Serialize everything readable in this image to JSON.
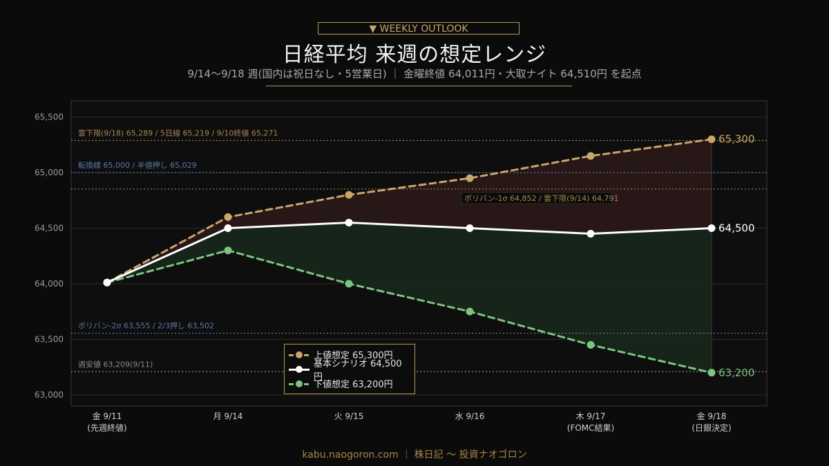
{
  "header": {
    "badge": "▼ WEEKLY OUTLOOK",
    "title": "日経平均 来週の想定レンジ",
    "subtitle": "9/14〜9/18 週(国内は祝日なし・5営業日) ｜ 金曜終値 64,011円・大取ナイト 64,510円 を起点"
  },
  "footer": {
    "text": "kabu.naogoron.com ｜ 株日記 〜 投資ナオゴロン"
  },
  "colors": {
    "upper": "#c9a66b",
    "base": "#ffffff",
    "lower": "#7bc67e",
    "upper_band": "#2a1818",
    "lower_band": "#17261b",
    "blue_ref": "#5a78a8",
    "gold_ref": "#a8854a",
    "gray_ref": "#8a8a8a"
  },
  "chart_data": {
    "type": "line",
    "categories": [
      "金 9/11\n(先週終値)",
      "月 9/14",
      "火 9/15",
      "水 9/16",
      "木 9/17\n(FOMC結果)",
      "金 9/18\n(日銀決定)"
    ],
    "ylim": [
      63000,
      65700
    ],
    "yticks": [
      63000,
      63500,
      64000,
      64500,
      65000,
      65500
    ],
    "ytick_labels": [
      "63,000",
      "63,500",
      "64,000",
      "64,500",
      "65,000",
      "65,500"
    ],
    "grid": true,
    "series": [
      {
        "name": "上値想定 65,300円",
        "key": "upper",
        "values": [
          64011,
          64600,
          64800,
          64950,
          65150,
          65300
        ],
        "dashed": true,
        "end_label": "65,300"
      },
      {
        "name": "基本シナリオ 64,500円",
        "key": "base",
        "values": [
          64011,
          64500,
          64550,
          64500,
          64450,
          64500
        ],
        "dashed": false,
        "end_label": "64,500"
      },
      {
        "name": "下値想定 63,200円",
        "key": "lower",
        "values": [
          64011,
          64300,
          64000,
          63750,
          63450,
          63200
        ],
        "dashed": true,
        "end_label": "63,200"
      }
    ],
    "reference_lines": [
      {
        "value": 65289,
        "label": "雲下限(9/18) 65,289 / 5日線 65,219 / 9/10終値 65,271",
        "color_key": "gold_ref",
        "label_side": "left"
      },
      {
        "value": 65000,
        "label": "転換線 65,000 / 半値押し 65,029",
        "color_key": "blue_ref",
        "label_side": "left"
      },
      {
        "value": 64852,
        "label": "ボリバン-1σ 64,852 / 雲下限(9/14) 64,791",
        "color_key": "gold_ref",
        "label_side": "mid"
      },
      {
        "value": 63555,
        "label": "ボリバン-2σ 63,555 / 2/3押し 63,502",
        "color_key": "blue_ref",
        "label_side": "left"
      },
      {
        "value": 63209,
        "label": "週安値 63,209(9/11)",
        "color_key": "gray_ref",
        "label_side": "left"
      }
    ],
    "legend": "bottom-center"
  }
}
